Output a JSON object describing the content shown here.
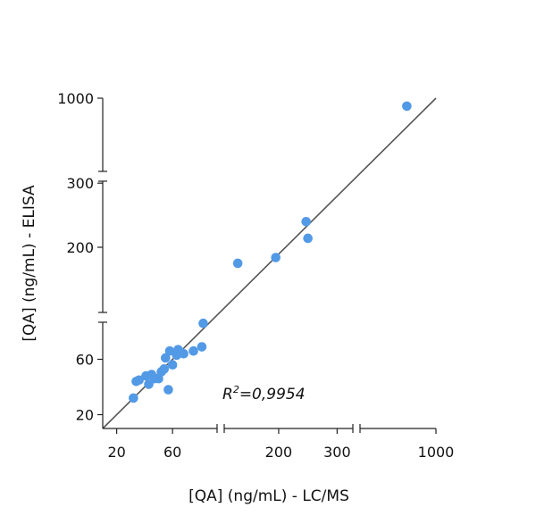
{
  "chart_data": {
    "type": "scatter",
    "xlabel": "[QA] (ng/mL) - LC/MS",
    "ylabel": "[QA] (ng/mL) - ELISA",
    "x_scale": "broken",
    "y_scale": "broken",
    "x_segments": [
      [
        10,
        90
      ],
      [
        90,
        330
      ],
      [
        330,
        1000
      ]
    ],
    "y_segments": [
      [
        10,
        90
      ],
      [
        90,
        310
      ],
      [
        310,
        1000
      ]
    ],
    "x_ticks": [
      20,
      60,
      200,
      300,
      1000
    ],
    "y_ticks": [
      20,
      60,
      200,
      300,
      1000
    ],
    "x_tick_labels": [
      "20",
      "60",
      "200",
      "300",
      "1000"
    ],
    "y_tick_labels": [
      "20",
      "60",
      "200",
      "300",
      "1000"
    ],
    "annotation_prefix": "R",
    "annotation_sup": "2",
    "annotation_value": "=0,9954",
    "point_color": "#5299e6",
    "line_color": "#555555",
    "grid": false,
    "legend": false,
    "fit_line": [
      [
        10,
        10
      ],
      [
        1000,
        1000
      ]
    ],
    "points": [
      {
        "x": 32,
        "y": 32
      },
      {
        "x": 34,
        "y": 44
      },
      {
        "x": 36,
        "y": 45
      },
      {
        "x": 41,
        "y": 48
      },
      {
        "x": 43,
        "y": 42
      },
      {
        "x": 45,
        "y": 49
      },
      {
        "x": 47,
        "y": 46
      },
      {
        "x": 50,
        "y": 46
      },
      {
        "x": 52,
        "y": 51
      },
      {
        "x": 54,
        "y": 53
      },
      {
        "x": 55,
        "y": 61
      },
      {
        "x": 57,
        "y": 38
      },
      {
        "x": 58,
        "y": 66
      },
      {
        "x": 60,
        "y": 56
      },
      {
        "x": 63,
        "y": 63
      },
      {
        "x": 64,
        "y": 67
      },
      {
        "x": 66,
        "y": 65
      },
      {
        "x": 68,
        "y": 64
      },
      {
        "x": 75,
        "y": 66
      },
      {
        "x": 81,
        "y": 69
      },
      {
        "x": 82,
        "y": 86
      },
      {
        "x": 130,
        "y": 175
      },
      {
        "x": 195,
        "y": 184
      },
      {
        "x": 247,
        "y": 240
      },
      {
        "x": 250,
        "y": 214
      },
      {
        "x": 760,
        "y": 930
      }
    ]
  }
}
